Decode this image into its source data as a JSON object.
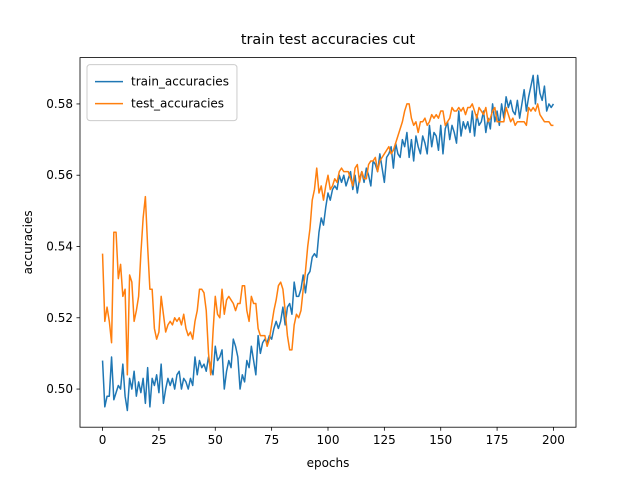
{
  "chart_data": {
    "type": "line",
    "title": "train test accuracies cut",
    "xlabel": "epochs",
    "ylabel": "accuracies",
    "xlim": [
      -10,
      210
    ],
    "ylim": [
      0.4893,
      0.593
    ],
    "xticks": [
      0,
      25,
      50,
      75,
      100,
      125,
      150,
      175,
      200
    ],
    "yticks": [
      {
        "value": 0.5,
        "label": "0.50"
      },
      0.52,
      0.54,
      0.56,
      0.58
    ],
    "grid": false,
    "legend": "upper left",
    "x": [
      0,
      1,
      2,
      3,
      4,
      5,
      6,
      7,
      8,
      9,
      10,
      11,
      12,
      13,
      14,
      15,
      16,
      17,
      18,
      19,
      20,
      21,
      22,
      23,
      24,
      25,
      26,
      27,
      28,
      29,
      30,
      31,
      32,
      33,
      34,
      35,
      36,
      37,
      38,
      39,
      40,
      41,
      42,
      43,
      44,
      45,
      46,
      47,
      48,
      49,
      50,
      51,
      52,
      53,
      54,
      55,
      56,
      57,
      58,
      59,
      60,
      61,
      62,
      63,
      64,
      65,
      66,
      67,
      68,
      69,
      70,
      71,
      72,
      73,
      74,
      75,
      76,
      77,
      78,
      79,
      80,
      81,
      82,
      83,
      84,
      85,
      86,
      87,
      88,
      89,
      90,
      91,
      92,
      93,
      94,
      95,
      96,
      97,
      98,
      99,
      100,
      101,
      102,
      103,
      104,
      105,
      106,
      107,
      108,
      109,
      110,
      111,
      112,
      113,
      114,
      115,
      116,
      117,
      118,
      119,
      120,
      121,
      122,
      123,
      124,
      125,
      126,
      127,
      128,
      129,
      130,
      131,
      132,
      133,
      134,
      135,
      136,
      137,
      138,
      139,
      140,
      141,
      142,
      143,
      144,
      145,
      146,
      147,
      148,
      149,
      150,
      151,
      152,
      153,
      154,
      155,
      156,
      157,
      158,
      159,
      160,
      161,
      162,
      163,
      164,
      165,
      166,
      167,
      168,
      169,
      170,
      171,
      172,
      173,
      174,
      175,
      176,
      177,
      178,
      179,
      180,
      181,
      182,
      183,
      184,
      185,
      186,
      187,
      188,
      189,
      190,
      191,
      192,
      193,
      194,
      195,
      196,
      197,
      198,
      199,
      200
    ],
    "series": [
      {
        "name": "train_accuracies",
        "color": "#1f77b4",
        "values": [
          0.508,
          0.495,
          0.498,
          0.498,
          0.509,
          0.497,
          0.499,
          0.501,
          0.5,
          0.507,
          0.498,
          0.494,
          0.503,
          0.5,
          0.505,
          0.498,
          0.502,
          0.499,
          0.503,
          0.496,
          0.506,
          0.495,
          0.503,
          0.501,
          0.504,
          0.499,
          0.507,
          0.496,
          0.5,
          0.503,
          0.501,
          0.503,
          0.5,
          0.504,
          0.505,
          0.5,
          0.503,
          0.502,
          0.5,
          0.503,
          0.501,
          0.509,
          0.504,
          0.508,
          0.506,
          0.507,
          0.505,
          0.509,
          0.506,
          0.504,
          0.512,
          0.508,
          0.509,
          0.511,
          0.5,
          0.505,
          0.508,
          0.506,
          0.514,
          0.512,
          0.509,
          0.5,
          0.504,
          0.502,
          0.508,
          0.506,
          0.512,
          0.508,
          0.504,
          0.515,
          0.51,
          0.513,
          0.514,
          0.513,
          0.515,
          0.514,
          0.517,
          0.519,
          0.517,
          0.519,
          0.523,
          0.518,
          0.523,
          0.524,
          0.521,
          0.53,
          0.526,
          0.526,
          0.528,
          0.532,
          0.527,
          0.532,
          0.533,
          0.537,
          0.538,
          0.537,
          0.544,
          0.548,
          0.546,
          0.551,
          0.555,
          0.553,
          0.556,
          0.557,
          0.556,
          0.56,
          0.558,
          0.56,
          0.557,
          0.559,
          0.561,
          0.556,
          0.56,
          0.555,
          0.559,
          0.561,
          0.558,
          0.562,
          0.56,
          0.557,
          0.564,
          0.563,
          0.561,
          0.566,
          0.562,
          0.558,
          0.565,
          0.566,
          0.568,
          0.562,
          0.569,
          0.566,
          0.565,
          0.57,
          0.568,
          0.572,
          0.565,
          0.57,
          0.564,
          0.571,
          0.568,
          0.566,
          0.571,
          0.569,
          0.566,
          0.574,
          0.568,
          0.572,
          0.571,
          0.567,
          0.574,
          0.566,
          0.573,
          0.575,
          0.57,
          0.574,
          0.572,
          0.569,
          0.578,
          0.571,
          0.575,
          0.573,
          0.575,
          0.572,
          0.578,
          0.571,
          0.577,
          0.574,
          0.575,
          0.578,
          0.572,
          0.576,
          0.573,
          0.58,
          0.575,
          0.578,
          0.574,
          0.58,
          0.576,
          0.582,
          0.579,
          0.581,
          0.578,
          0.577,
          0.581,
          0.576,
          0.58,
          0.584,
          0.578,
          0.582,
          0.585,
          0.588,
          0.58,
          0.588,
          0.583,
          0.581,
          0.585,
          0.578,
          0.58,
          0.579,
          0.58
        ]
      },
      {
        "name": "test_accuracies",
        "color": "#ff7f0e",
        "values": [
          0.538,
          0.519,
          0.523,
          0.519,
          0.513,
          0.544,
          0.544,
          0.531,
          0.535,
          0.526,
          0.528,
          0.504,
          0.532,
          0.53,
          0.519,
          0.522,
          0.526,
          0.538,
          0.548,
          0.554,
          0.54,
          0.528,
          0.528,
          0.517,
          0.514,
          0.516,
          0.526,
          0.521,
          0.516,
          0.518,
          0.519,
          0.518,
          0.52,
          0.519,
          0.52,
          0.518,
          0.521,
          0.517,
          0.515,
          0.516,
          0.514,
          0.519,
          0.522,
          0.528,
          0.528,
          0.527,
          0.522,
          0.51,
          0.504,
          0.516,
          0.526,
          0.521,
          0.52,
          0.528,
          0.521,
          0.525,
          0.526,
          0.525,
          0.524,
          0.522,
          0.524,
          0.524,
          0.529,
          0.529,
          0.522,
          0.519,
          0.526,
          0.524,
          0.524,
          0.517,
          0.515,
          0.515,
          0.515,
          0.512,
          0.514,
          0.518,
          0.522,
          0.525,
          0.529,
          0.53,
          0.528,
          0.522,
          0.515,
          0.511,
          0.511,
          0.518,
          0.521,
          0.52,
          0.522,
          0.528,
          0.533,
          0.54,
          0.545,
          0.553,
          0.556,
          0.562,
          0.555,
          0.557,
          0.553,
          0.557,
          0.56,
          0.556,
          0.557,
          0.559,
          0.558,
          0.561,
          0.562,
          0.561,
          0.561,
          0.561,
          0.559,
          0.557,
          0.562,
          0.563,
          0.558,
          0.561,
          0.559,
          0.559,
          0.563,
          0.564,
          0.564,
          0.565,
          0.561,
          0.564,
          0.565,
          0.566,
          0.567,
          0.568,
          0.566,
          0.567,
          0.569,
          0.571,
          0.573,
          0.575,
          0.578,
          0.58,
          0.58,
          0.576,
          0.574,
          0.575,
          0.572,
          0.575,
          0.575,
          0.576,
          0.574,
          0.575,
          0.577,
          0.576,
          0.577,
          0.576,
          0.578,
          0.578,
          0.574,
          0.575,
          0.576,
          0.579,
          0.578,
          0.578,
          0.579,
          0.578,
          0.579,
          0.577,
          0.579,
          0.579,
          0.58,
          0.578,
          0.576,
          0.579,
          0.578,
          0.577,
          0.579,
          0.575,
          0.576,
          0.578,
          0.579,
          0.575,
          0.575,
          0.575,
          0.575,
          0.579,
          0.577,
          0.575,
          0.576,
          0.574,
          0.575,
          0.575,
          0.575,
          0.575,
          0.574,
          0.579,
          0.578,
          0.579,
          0.578,
          0.58,
          0.577,
          0.576,
          0.575,
          0.575,
          0.575,
          0.574,
          0.574
        ]
      }
    ]
  }
}
